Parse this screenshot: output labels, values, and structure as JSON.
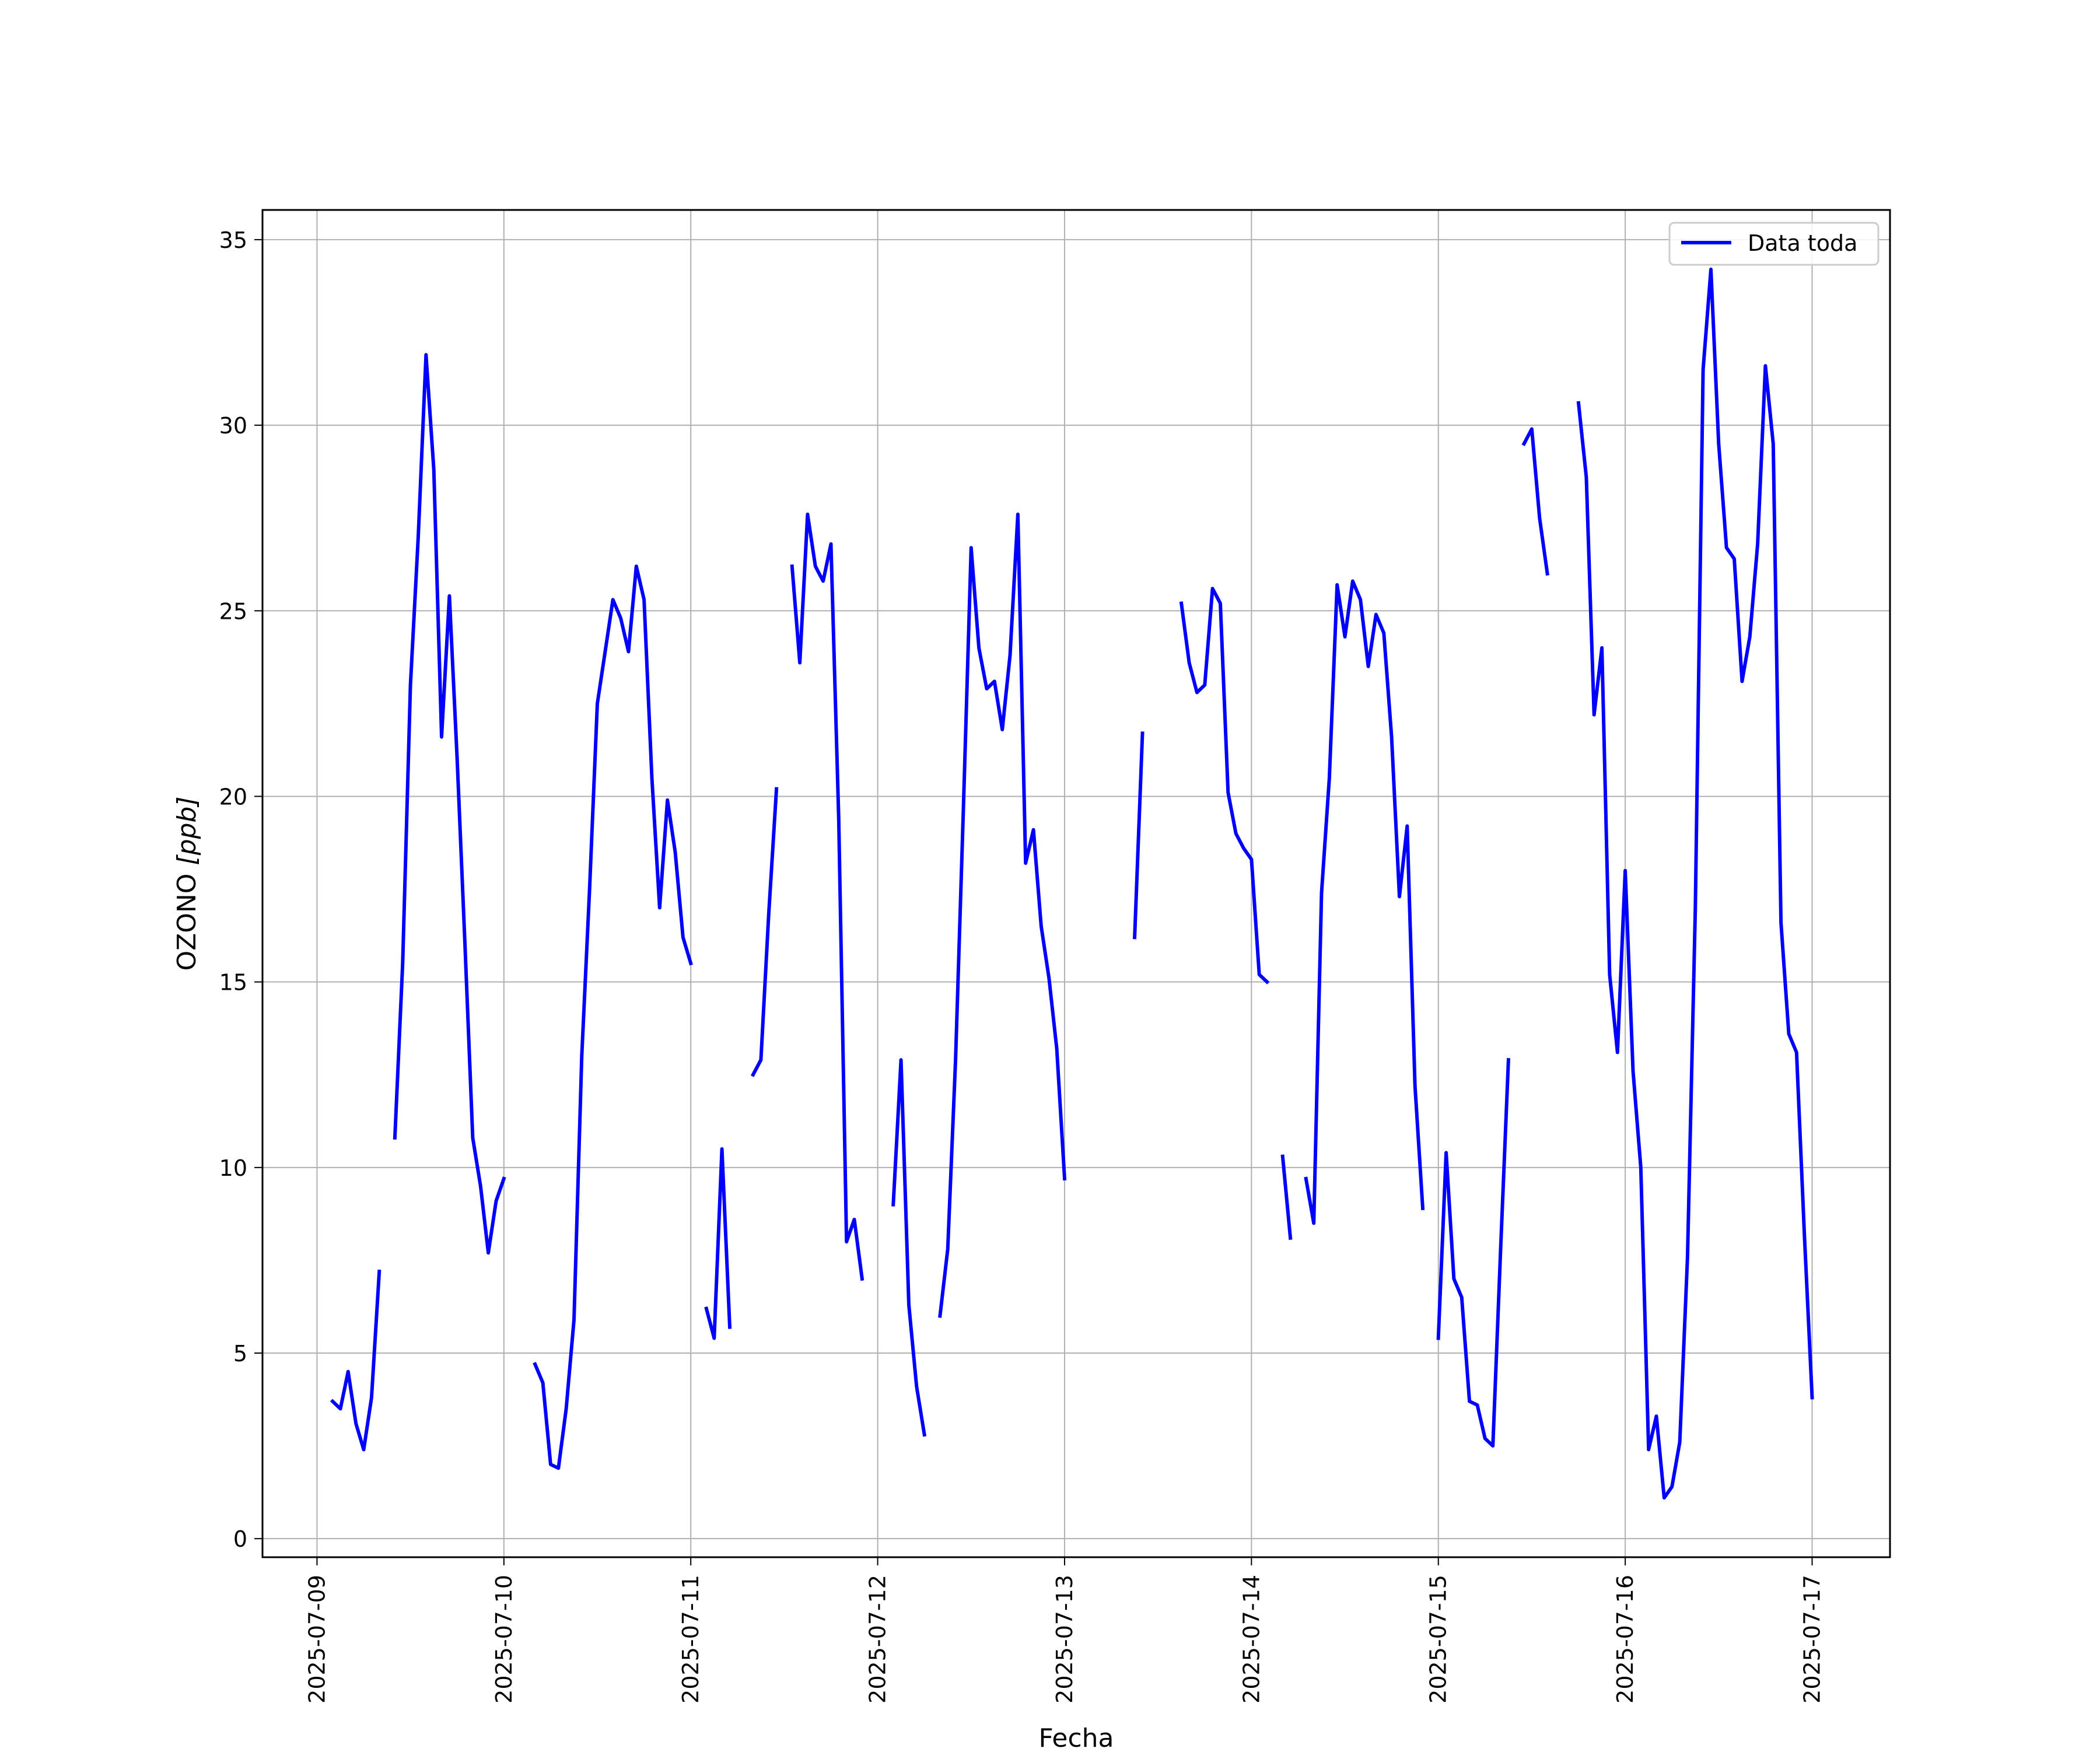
{
  "chart_data": {
    "type": "line",
    "title": "",
    "xlabel": "Fecha",
    "ylabel_main": "OZONO ",
    "ylabel_unit": "[ppb]",
    "xlim": [
      "2025-07-08T17:00",
      "2025-07-17T10:00"
    ],
    "ylim": [
      -0.5,
      35.8
    ],
    "grid": true,
    "legend_position": "upper right",
    "x_ticks": [
      "2025-07-09",
      "2025-07-10",
      "2025-07-11",
      "2025-07-12",
      "2025-07-13",
      "2025-07-14",
      "2025-07-15",
      "2025-07-16",
      "2025-07-17"
    ],
    "y_ticks": [
      0,
      5,
      10,
      15,
      20,
      25,
      30,
      35
    ],
    "series": [
      {
        "name": "Data toda",
        "color": "#0000ff",
        "segments": [
          [
            [
              "2025-07-09T02:00",
              3.7
            ],
            [
              "2025-07-09T03:00",
              3.5
            ],
            [
              "2025-07-09T04:00",
              4.5
            ],
            [
              "2025-07-09T05:00",
              3.1
            ],
            [
              "2025-07-09T06:00",
              2.4
            ],
            [
              "2025-07-09T07:00",
              3.8
            ],
            [
              "2025-07-09T08:00",
              7.2
            ]
          ],
          [
            [
              "2025-07-09T10:00",
              10.8
            ],
            [
              "2025-07-09T11:00",
              15.5
            ],
            [
              "2025-07-09T12:00",
              23.0
            ],
            [
              "2025-07-09T13:00",
              27.0
            ],
            [
              "2025-07-09T14:00",
              31.9
            ],
            [
              "2025-07-09T15:00",
              28.8
            ],
            [
              "2025-07-09T16:00",
              21.6
            ],
            [
              "2025-07-09T17:00",
              25.4
            ],
            [
              "2025-07-09T18:00",
              21.0
            ],
            [
              "2025-07-09T19:00",
              16.0
            ],
            [
              "2025-07-09T20:00",
              10.8
            ],
            [
              "2025-07-09T21:00",
              9.5
            ],
            [
              "2025-07-09T22:00",
              7.7
            ],
            [
              "2025-07-09T23:00",
              9.1
            ],
            [
              "2025-07-10T00:00",
              9.7
            ]
          ],
          [
            [
              "2025-07-10T04:00",
              4.7
            ],
            [
              "2025-07-10T05:00",
              4.2
            ],
            [
              "2025-07-10T06:00",
              2.0
            ],
            [
              "2025-07-10T07:00",
              1.9
            ],
            [
              "2025-07-10T08:00",
              3.5
            ],
            [
              "2025-07-10T09:00",
              5.9
            ],
            [
              "2025-07-10T10:00",
              13.0
            ],
            [
              "2025-07-10T11:00",
              17.5
            ],
            [
              "2025-07-10T12:00",
              22.5
            ],
            [
              "2025-07-10T13:00",
              23.9
            ],
            [
              "2025-07-10T14:00",
              25.3
            ],
            [
              "2025-07-10T15:00",
              24.8
            ],
            [
              "2025-07-10T16:00",
              23.9
            ],
            [
              "2025-07-10T17:00",
              26.2
            ],
            [
              "2025-07-10T18:00",
              25.3
            ],
            [
              "2025-07-10T19:00",
              20.5
            ],
            [
              "2025-07-10T20:00",
              17.0
            ],
            [
              "2025-07-10T21:00",
              19.9
            ],
            [
              "2025-07-10T22:00",
              18.5
            ],
            [
              "2025-07-10T23:00",
              16.2
            ],
            [
              "2025-07-11T00:00",
              15.5
            ]
          ],
          [
            [
              "2025-07-11T02:00",
              6.2
            ],
            [
              "2025-07-11T03:00",
              5.4
            ],
            [
              "2025-07-11T04:00",
              10.5
            ],
            [
              "2025-07-11T05:00",
              5.7
            ]
          ],
          [
            [
              "2025-07-11T08:00",
              12.5
            ],
            [
              "2025-07-11T09:00",
              12.9
            ],
            [
              "2025-07-11T10:00",
              16.8
            ],
            [
              "2025-07-11T11:00",
              20.2
            ]
          ],
          [
            [
              "2025-07-11T13:00",
              26.2
            ],
            [
              "2025-07-11T14:00",
              23.6
            ],
            [
              "2025-07-11T15:00",
              27.6
            ],
            [
              "2025-07-11T16:00",
              26.2
            ],
            [
              "2025-07-11T17:00",
              25.8
            ],
            [
              "2025-07-11T18:00",
              26.8
            ],
            [
              "2025-07-11T19:00",
              19.4
            ],
            [
              "2025-07-11T20:00",
              8.0
            ],
            [
              "2025-07-11T21:00",
              8.6
            ],
            [
              "2025-07-11T22:00",
              7.0
            ]
          ],
          [
            [
              "2025-07-12T02:00",
              9.0
            ],
            [
              "2025-07-12T03:00",
              12.9
            ],
            [
              "2025-07-12T04:00",
              6.3
            ],
            [
              "2025-07-12T05:00",
              4.1
            ],
            [
              "2025-07-12T06:00",
              2.8
            ]
          ],
          [
            [
              "2025-07-12T08:00",
              6.0
            ],
            [
              "2025-07-12T09:00",
              7.8
            ],
            [
              "2025-07-12T10:00",
              12.9
            ],
            [
              "2025-07-12T11:00",
              19.6
            ],
            [
              "2025-07-12T12:00",
              26.7
            ],
            [
              "2025-07-12T13:00",
              24.0
            ],
            [
              "2025-07-12T14:00",
              22.9
            ],
            [
              "2025-07-12T15:00",
              23.1
            ],
            [
              "2025-07-12T16:00",
              21.8
            ],
            [
              "2025-07-12T17:00",
              23.8
            ],
            [
              "2025-07-12T18:00",
              27.6
            ],
            [
              "2025-07-12T19:00",
              18.2
            ],
            [
              "2025-07-12T20:00",
              19.1
            ],
            [
              "2025-07-12T21:00",
              16.5
            ],
            [
              "2025-07-12T22:00",
              15.1
            ],
            [
              "2025-07-12T23:00",
              13.2
            ],
            [
              "2025-07-13T00:00",
              9.7
            ]
          ],
          [
            [
              "2025-07-13T09:00",
              16.2
            ],
            [
              "2025-07-13T10:00",
              21.7
            ]
          ],
          [
            [
              "2025-07-13T15:00",
              25.2
            ],
            [
              "2025-07-13T16:00",
              23.6
            ],
            [
              "2025-07-13T17:00",
              22.8
            ],
            [
              "2025-07-13T18:00",
              23.0
            ],
            [
              "2025-07-13T19:00",
              25.6
            ],
            [
              "2025-07-13T20:00",
              25.2
            ],
            [
              "2025-07-13T21:00",
              20.1
            ],
            [
              "2025-07-13T22:00",
              19.0
            ],
            [
              "2025-07-13T23:00",
              18.6
            ],
            [
              "2025-07-14T00:00",
              18.3
            ],
            [
              "2025-07-14T01:00",
              15.2
            ],
            [
              "2025-07-14T02:00",
              15.0
            ]
          ],
          [
            [
              "2025-07-14T04:00",
              10.3
            ],
            [
              "2025-07-14T05:00",
              8.1
            ]
          ],
          [
            [
              "2025-07-14T07:00",
              9.7
            ],
            [
              "2025-07-14T08:00",
              8.5
            ],
            [
              "2025-07-14T09:00",
              17.4
            ],
            [
              "2025-07-14T10:00",
              20.5
            ],
            [
              "2025-07-14T11:00",
              25.7
            ],
            [
              "2025-07-14T12:00",
              24.3
            ],
            [
              "2025-07-14T13:00",
              25.8
            ],
            [
              "2025-07-14T14:00",
              25.3
            ],
            [
              "2025-07-14T15:00",
              23.5
            ],
            [
              "2025-07-14T16:00",
              24.9
            ],
            [
              "2025-07-14T17:00",
              24.4
            ],
            [
              "2025-07-14T18:00",
              21.6
            ],
            [
              "2025-07-14T19:00",
              17.3
            ],
            [
              "2025-07-14T20:00",
              19.2
            ],
            [
              "2025-07-14T21:00",
              12.2
            ],
            [
              "2025-07-14T22:00",
              8.9
            ]
          ],
          [
            [
              "2025-07-15T00:00",
              5.4
            ],
            [
              "2025-07-15T01:00",
              10.4
            ],
            [
              "2025-07-15T02:00",
              7.0
            ],
            [
              "2025-07-15T03:00",
              6.5
            ],
            [
              "2025-07-15T04:00",
              3.7
            ],
            [
              "2025-07-15T05:00",
              3.6
            ],
            [
              "2025-07-15T06:00",
              2.7
            ],
            [
              "2025-07-15T07:00",
              2.5
            ],
            [
              "2025-07-15T08:00",
              7.8
            ],
            [
              "2025-07-15T09:00",
              12.9
            ]
          ],
          [
            [
              "2025-07-15T11:00",
              29.5
            ],
            [
              "2025-07-15T12:00",
              29.9
            ],
            [
              "2025-07-15T13:00",
              27.5
            ],
            [
              "2025-07-15T14:00",
              26.0
            ]
          ],
          [
            [
              "2025-07-15T18:00",
              30.6
            ],
            [
              "2025-07-15T19:00",
              28.6
            ],
            [
              "2025-07-15T20:00",
              22.2
            ],
            [
              "2025-07-15T21:00",
              24.0
            ],
            [
              "2025-07-15T22:00",
              15.2
            ],
            [
              "2025-07-15T23:00",
              13.1
            ],
            [
              "2025-07-16T00:00",
              18.0
            ],
            [
              "2025-07-16T01:00",
              12.6
            ],
            [
              "2025-07-16T02:00",
              10.0
            ],
            [
              "2025-07-16T03:00",
              2.4
            ],
            [
              "2025-07-16T04:00",
              3.3
            ],
            [
              "2025-07-16T05:00",
              1.1
            ],
            [
              "2025-07-16T06:00",
              1.4
            ],
            [
              "2025-07-16T07:00",
              2.6
            ],
            [
              "2025-07-16T08:00",
              7.6
            ],
            [
              "2025-07-16T09:00",
              17.0
            ],
            [
              "2025-07-16T10:00",
              31.5
            ],
            [
              "2025-07-16T11:00",
              34.2
            ],
            [
              "2025-07-16T12:00",
              29.5
            ],
            [
              "2025-07-16T13:00",
              26.7
            ],
            [
              "2025-07-16T14:00",
              26.4
            ],
            [
              "2025-07-16T15:00",
              23.1
            ],
            [
              "2025-07-16T16:00",
              24.3
            ],
            [
              "2025-07-16T17:00",
              26.8
            ],
            [
              "2025-07-16T18:00",
              31.6
            ],
            [
              "2025-07-16T19:00",
              29.5
            ],
            [
              "2025-07-16T20:00",
              16.6
            ],
            [
              "2025-07-16T21:00",
              13.6
            ],
            [
              "2025-07-16T22:00",
              13.1
            ],
            [
              "2025-07-16T23:00",
              8.2
            ],
            [
              "2025-07-17T00:00",
              3.8
            ]
          ]
        ]
      }
    ]
  }
}
